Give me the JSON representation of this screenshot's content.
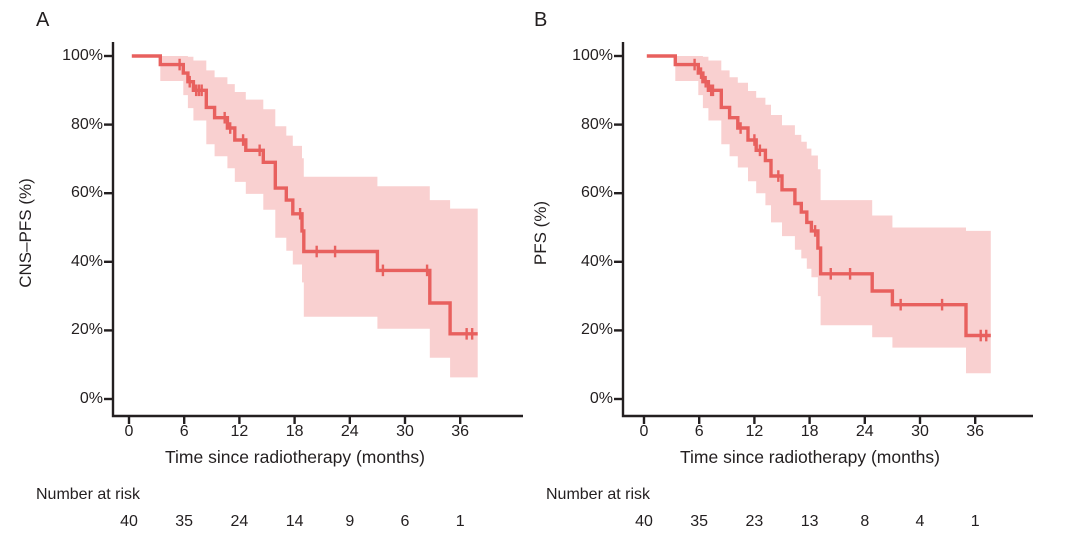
{
  "figure": {
    "colors": {
      "curve": "#e8605e",
      "band": "#f9d0d0",
      "axis": "#231f20",
      "text": "#231f20",
      "background": "#ffffff"
    }
  },
  "chart_data": [
    {
      "panel_label": "A",
      "type": "line",
      "subtype": "kaplan-meier-step",
      "ylabel": "CNS–PFS (%)",
      "xlabel": "Time since radiotherapy (months)",
      "ytick_labels": [
        "100%",
        "80%",
        "60%",
        "40%",
        "20%",
        "0%"
      ],
      "ytick_values": [
        100,
        80,
        60,
        40,
        20,
        0
      ],
      "xtick_values": [
        0,
        6,
        12,
        18,
        24,
        30,
        36
      ],
      "ylim": [
        0,
        100
      ],
      "xlim": [
        0,
        43
      ],
      "grid": false,
      "legend": "none",
      "risk_label": "Number at risk",
      "risk_times": [
        0,
        6,
        12,
        18,
        24,
        30,
        36
      ],
      "risk_counts": [
        40,
        35,
        24,
        14,
        9,
        6,
        1
      ],
      "curve_end_time": 37.9,
      "steps": [
        {
          "t": 0.3,
          "s": 100,
          "hi": 100,
          "lo": 100
        },
        {
          "t": 3.4,
          "s": 97.5,
          "hi": 100,
          "lo": 92.7
        },
        {
          "t": 5.9,
          "s": 95.0,
          "hi": 100,
          "lo": 88.6
        },
        {
          "t": 6.4,
          "s": 92.5,
          "hi": 99.8,
          "lo": 84.8
        },
        {
          "t": 7.0,
          "s": 90.0,
          "hi": 98.7,
          "lo": 81.2
        },
        {
          "t": 8.4,
          "s": 85.0,
          "hi": 95.8,
          "lo": 74.3
        },
        {
          "t": 9.3,
          "s": 82.0,
          "hi": 93.8,
          "lo": 70.8
        },
        {
          "t": 10.7,
          "s": 79.0,
          "hi": 91.8,
          "lo": 67.3
        },
        {
          "t": 11.5,
          "s": 75.5,
          "hi": 89.5,
          "lo": 63.3
        },
        {
          "t": 12.7,
          "s": 72.5,
          "hi": 87.3,
          "lo": 59.8
        },
        {
          "t": 14.6,
          "s": 69.0,
          "hi": 84.5,
          "lo": 55.2
        },
        {
          "t": 15.9,
          "s": 61.5,
          "hi": 79.5,
          "lo": 47.0
        },
        {
          "t": 17.1,
          "s": 58.0,
          "hi": 76.8,
          "lo": 43.2
        },
        {
          "t": 17.8,
          "s": 54.0,
          "hi": 73.8,
          "lo": 39.2
        },
        {
          "t": 18.8,
          "s": 49.0,
          "hi": 70.2,
          "lo": 34.0
        },
        {
          "t": 19.0,
          "s": 43.0,
          "hi": 64.8,
          "lo": 24.0
        },
        {
          "t": 27.0,
          "s": 37.5,
          "hi": 62.0,
          "lo": 20.5
        },
        {
          "t": 32.7,
          "s": 28.0,
          "hi": 58.0,
          "lo": 12.0
        },
        {
          "t": 34.9,
          "s": 19.0,
          "hi": 55.5,
          "lo": 6.3
        }
      ],
      "censors": [
        {
          "t": 5.5,
          "s": 97.5
        },
        {
          "t": 6.6,
          "s": 92.5
        },
        {
          "t": 7.3,
          "s": 90
        },
        {
          "t": 7.6,
          "s": 90
        },
        {
          "t": 7.9,
          "s": 90
        },
        {
          "t": 10.4,
          "s": 82
        },
        {
          "t": 11.0,
          "s": 79
        },
        {
          "t": 12.4,
          "s": 75.5
        },
        {
          "t": 14.2,
          "s": 72.5
        },
        {
          "t": 18.6,
          "s": 54
        },
        {
          "t": 20.4,
          "s": 43
        },
        {
          "t": 22.4,
          "s": 43
        },
        {
          "t": 27.6,
          "s": 37.5
        },
        {
          "t": 32.4,
          "s": 37.5
        },
        {
          "t": 36.7,
          "s": 19
        },
        {
          "t": 37.3,
          "s": 19
        }
      ]
    },
    {
      "panel_label": "B",
      "type": "line",
      "subtype": "kaplan-meier-step",
      "ylabel": "PFS (%)",
      "xlabel": "Time since radiotherapy (months)",
      "ytick_labels": [
        "100%",
        "80%",
        "60%",
        "40%",
        "20%",
        "0%"
      ],
      "ytick_values": [
        100,
        80,
        60,
        40,
        20,
        0
      ],
      "xtick_values": [
        0,
        6,
        12,
        18,
        24,
        30,
        36
      ],
      "ylim": [
        0,
        100
      ],
      "xlim": [
        0,
        43
      ],
      "grid": false,
      "legend": "none",
      "risk_label": "Number at risk",
      "risk_times": [
        0,
        6,
        12,
        18,
        24,
        30,
        36
      ],
      "risk_counts": [
        40,
        35,
        23,
        13,
        8,
        4,
        1
      ],
      "curve_end_time": 37.7,
      "steps": [
        {
          "t": 0.3,
          "s": 100,
          "hi": 100,
          "lo": 100
        },
        {
          "t": 3.4,
          "s": 97.5,
          "hi": 100,
          "lo": 92.7
        },
        {
          "t": 5.9,
          "s": 95.0,
          "hi": 100,
          "lo": 88.6
        },
        {
          "t": 6.4,
          "s": 92.5,
          "hi": 99.8,
          "lo": 84.8
        },
        {
          "t": 7.0,
          "s": 90.0,
          "hi": 98.7,
          "lo": 81.2
        },
        {
          "t": 8.4,
          "s": 85.0,
          "hi": 95.8,
          "lo": 74.3
        },
        {
          "t": 9.3,
          "s": 82.0,
          "hi": 93.8,
          "lo": 70.8
        },
        {
          "t": 10.2,
          "s": 79.0,
          "hi": 92.2,
          "lo": 67.5
        },
        {
          "t": 11.3,
          "s": 75.5,
          "hi": 89.8,
          "lo": 63.5
        },
        {
          "t": 12.2,
          "s": 72.5,
          "hi": 87.8,
          "lo": 60.0
        },
        {
          "t": 13.2,
          "s": 69.5,
          "hi": 85.8,
          "lo": 56.5
        },
        {
          "t": 13.8,
          "s": 65.0,
          "hi": 82.8,
          "lo": 51.5
        },
        {
          "t": 15.0,
          "s": 61.0,
          "hi": 79.8,
          "lo": 47.5
        },
        {
          "t": 16.4,
          "s": 57.0,
          "hi": 77.0,
          "lo": 43.5
        },
        {
          "t": 17.1,
          "s": 54.5,
          "hi": 75.0,
          "lo": 41.0
        },
        {
          "t": 17.7,
          "s": 51.5,
          "hi": 73.0,
          "lo": 38.0
        },
        {
          "t": 18.2,
          "s": 49.0,
          "hi": 71.0,
          "lo": 35.5
        },
        {
          "t": 18.9,
          "s": 44.0,
          "hi": 67.0,
          "lo": 30.0
        },
        {
          "t": 19.2,
          "s": 36.5,
          "hi": 58.0,
          "lo": 21.5
        },
        {
          "t": 24.8,
          "s": 31.5,
          "hi": 53.5,
          "lo": 18.0
        },
        {
          "t": 27.0,
          "s": 27.5,
          "hi": 50.0,
          "lo": 15.0
        },
        {
          "t": 35.0,
          "s": 18.5,
          "hi": 49.0,
          "lo": 7.5
        }
      ],
      "censors": [
        {
          "t": 5.5,
          "s": 97.5
        },
        {
          "t": 6.2,
          "s": 95
        },
        {
          "t": 6.7,
          "s": 92.5
        },
        {
          "t": 7.3,
          "s": 90
        },
        {
          "t": 7.5,
          "s": 90
        },
        {
          "t": 10.5,
          "s": 79
        },
        {
          "t": 12.0,
          "s": 75.5
        },
        {
          "t": 12.6,
          "s": 72.5
        },
        {
          "t": 14.6,
          "s": 65
        },
        {
          "t": 18.6,
          "s": 49
        },
        {
          "t": 20.3,
          "s": 36.5
        },
        {
          "t": 22.4,
          "s": 36.5
        },
        {
          "t": 27.9,
          "s": 27.5
        },
        {
          "t": 32.4,
          "s": 27.5
        },
        {
          "t": 36.6,
          "s": 18.5
        },
        {
          "t": 37.2,
          "s": 18.5
        }
      ]
    }
  ]
}
